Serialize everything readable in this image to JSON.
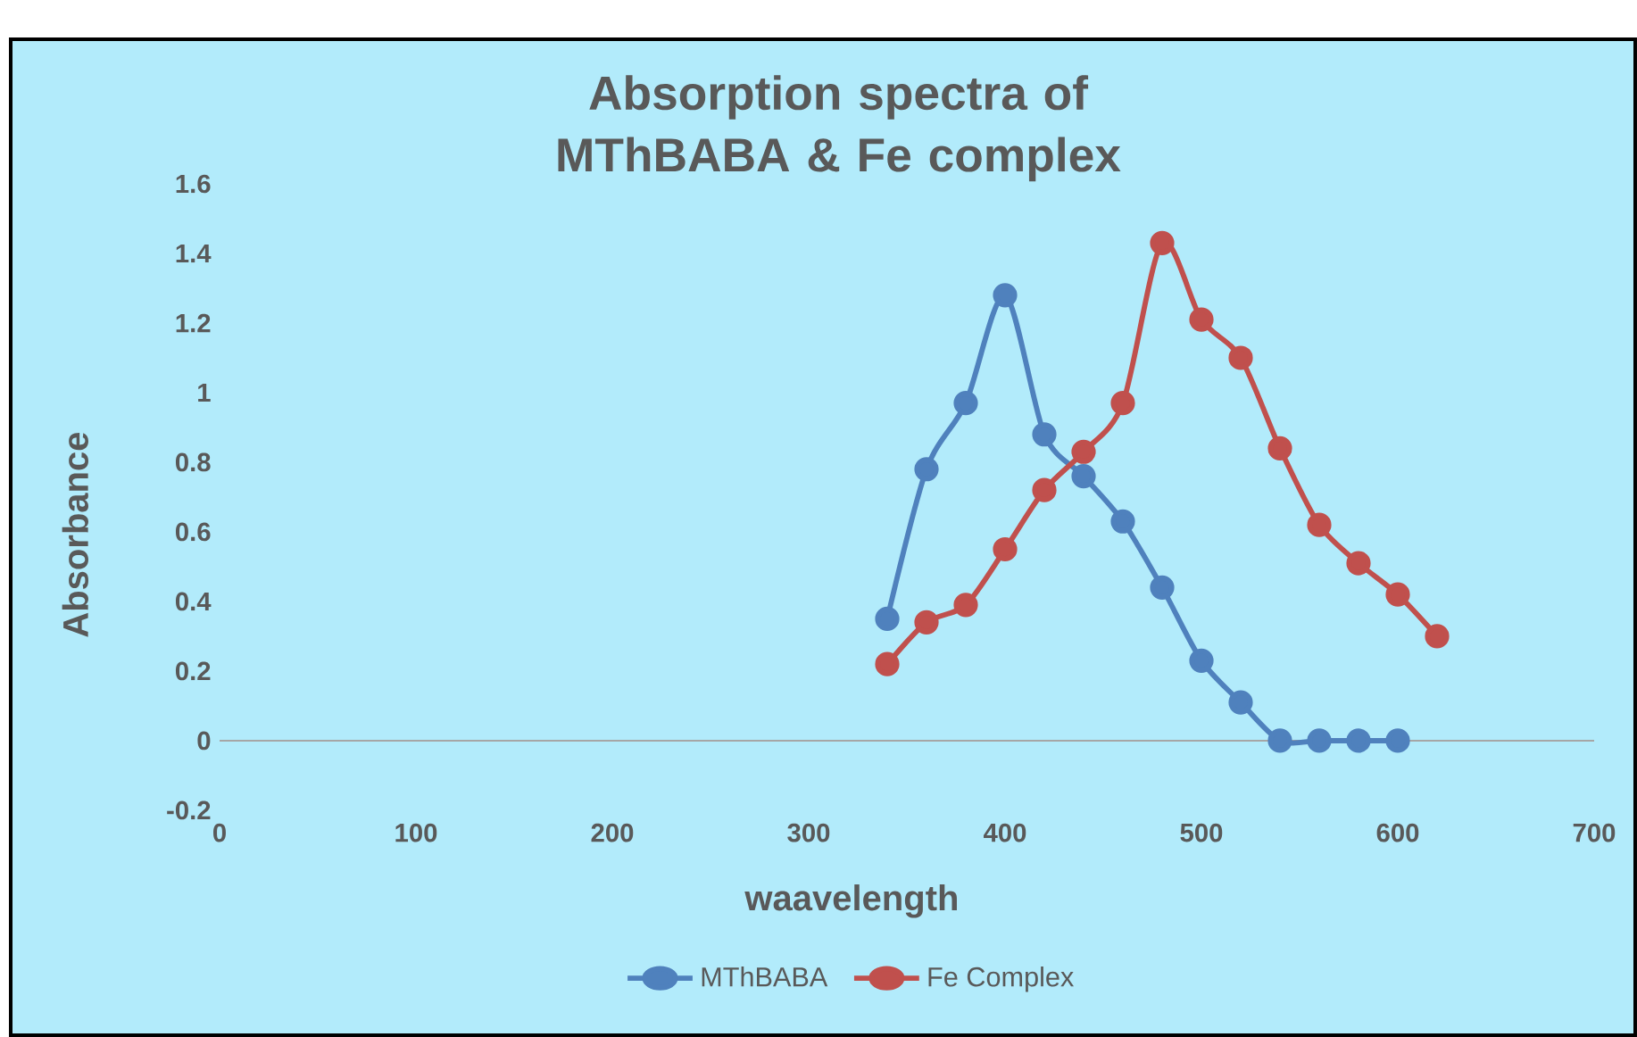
{
  "chart_data": {
    "type": "line",
    "title": "Absorption spectra of MThBABA & Fe complex",
    "xlabel": "waavelength",
    "ylabel": "Absorbance",
    "series": [
      {
        "name": "MThBABA",
        "color": "#4f81bd",
        "x": [
          340,
          360,
          380,
          400,
          420,
          440,
          460,
          480,
          500,
          520,
          540,
          560,
          580,
          600
        ],
        "values": [
          0.35,
          0.78,
          0.97,
          1.28,
          0.88,
          0.76,
          0.63,
          0.44,
          0.23,
          0.11,
          0,
          0,
          0,
          0
        ]
      },
      {
        "name": "Fe Complex",
        "color": "#c0504d",
        "x": [
          340,
          360,
          380,
          400,
          420,
          440,
          460,
          480,
          500,
          520,
          540,
          560,
          580,
          600,
          620
        ],
        "values": [
          0.22,
          0.34,
          0.39,
          0.55,
          0.72,
          0.83,
          0.97,
          1.43,
          1.21,
          1.1,
          0.84,
          0.62,
          0.51,
          0.42,
          0.3
        ]
      }
    ],
    "xlim": [
      0,
      700
    ],
    "xticks": [
      0,
      100,
      200,
      300,
      400,
      500,
      600,
      700
    ],
    "ylim": [
      -0.2,
      1.6
    ],
    "yticks": [
      -0.2,
      0,
      0.2,
      0.4,
      0.6,
      0.8,
      1,
      1.2,
      1.4,
      1.6
    ],
    "ref_lines": [
      {
        "axis": "y",
        "value": 0,
        "color": "#a6a6a6"
      }
    ],
    "marker": "circle",
    "line_style": "solid",
    "legend": "bottom",
    "grid": false
  }
}
